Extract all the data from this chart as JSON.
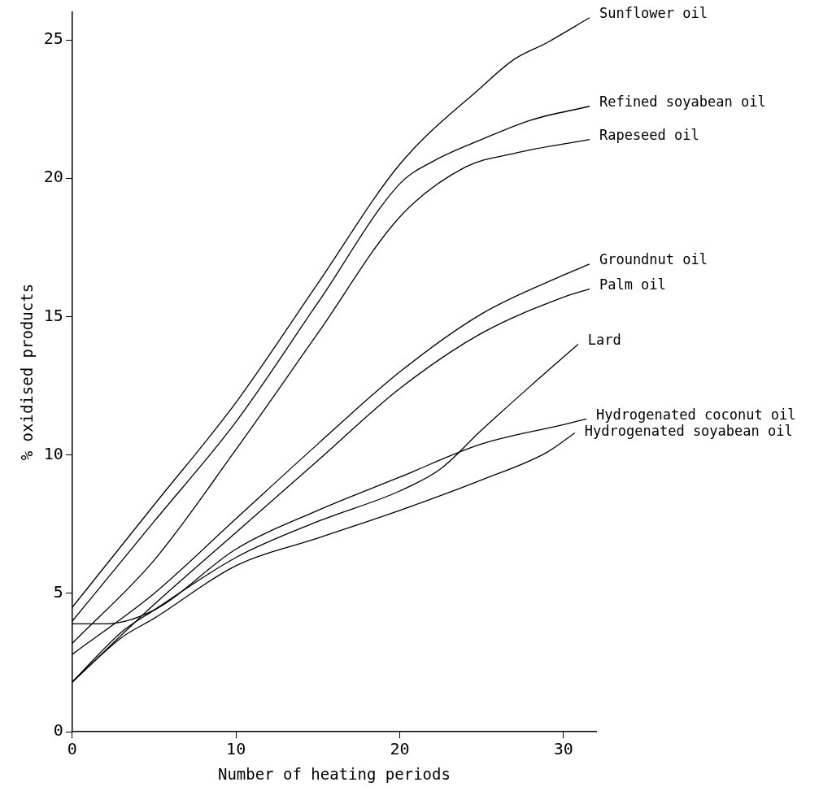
{
  "chart_data": {
    "type": "line",
    "xlabel": "Number of heating periods",
    "ylabel": "% oxidised products",
    "xlim": [
      0,
      32
    ],
    "xticks": [
      0,
      10,
      20,
      30
    ],
    "ylim": [
      0,
      26
    ],
    "yticks": [
      0,
      5,
      10,
      15,
      20,
      25
    ],
    "grid": false,
    "legend": false,
    "marker": "none",
    "line_style": "solid",
    "series": [
      {
        "name": "Sunflower oil",
        "color": "#000000",
        "x": [
          0,
          5,
          10,
          15,
          20,
          25,
          27,
          29,
          31.6
        ],
        "values": [
          4.5,
          8.2,
          11.9,
          16.2,
          20.5,
          23.3,
          24.3,
          24.9,
          25.8
        ]
      },
      {
        "name": "Refined soyabean oil",
        "color": "#000000",
        "x": [
          0,
          5,
          10,
          15,
          20,
          22,
          25,
          28,
          31.6
        ],
        "values": [
          4.0,
          7.6,
          11.2,
          15.5,
          19.8,
          20.6,
          21.4,
          22.1,
          22.6
        ]
      },
      {
        "name": "Rapeseed oil",
        "color": "#000000",
        "x": [
          0,
          5,
          10,
          15,
          20,
          24,
          27,
          31.6
        ],
        "values": [
          3.2,
          6.2,
          10.2,
          14.4,
          18.6,
          20.4,
          20.9,
          21.4
        ]
      },
      {
        "name": "Groundnut oil",
        "color": "#000000",
        "x": [
          0,
          5,
          10,
          15,
          20,
          25,
          30,
          31.6
        ],
        "values": [
          2.8,
          5.0,
          7.7,
          10.4,
          13.0,
          15.1,
          16.5,
          16.9
        ]
      },
      {
        "name": "Palm oil",
        "color": "#000000",
        "x": [
          0,
          5,
          10,
          15,
          20,
          25,
          30,
          31.6
        ],
        "values": [
          1.8,
          4.6,
          7.2,
          9.8,
          12.4,
          14.4,
          15.7,
          16.0
        ]
      },
      {
        "name": "Lard",
        "color": "#000000",
        "x": [
          0,
          3,
          5,
          10,
          15,
          20,
          22.5,
          25,
          28,
          30.9
        ],
        "values": [
          1.8,
          3.6,
          4.4,
          6.3,
          7.6,
          8.7,
          9.5,
          10.9,
          12.5,
          14.0
        ]
      },
      {
        "name": "Hydrogenated coconut oil",
        "color": "#000000",
        "x": [
          0,
          2,
          5,
          10,
          15,
          20,
          25,
          30,
          31.4
        ],
        "values": [
          3.9,
          3.9,
          4.4,
          6.6,
          8.0,
          9.2,
          10.4,
          11.1,
          11.3
        ]
      },
      {
        "name": "Hydrogenated soyabean oil",
        "color": "#000000",
        "x": [
          0,
          3,
          5,
          10,
          15,
          20,
          25,
          29,
          30.7
        ],
        "values": [
          1.8,
          3.4,
          4.1,
          6.0,
          7.0,
          8.0,
          9.1,
          10.1,
          10.8
        ]
      }
    ]
  }
}
